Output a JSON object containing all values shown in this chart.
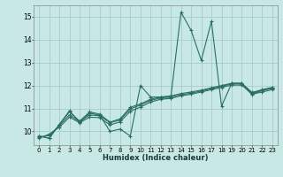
{
  "xlabel": "Humidex (Indice chaleur)",
  "bg_color": "#c8e8e5",
  "grid_color": "#a8ccca",
  "line_color": "#2a6e62",
  "xlim": [
    -0.5,
    23.5
  ],
  "ylim": [
    9.4,
    15.5
  ],
  "yticks": [
    10,
    11,
    12,
    13,
    14,
    15
  ],
  "xticks": [
    0,
    1,
    2,
    3,
    4,
    5,
    6,
    7,
    8,
    9,
    10,
    11,
    12,
    13,
    14,
    15,
    16,
    17,
    18,
    19,
    20,
    21,
    22,
    23
  ],
  "series0": [
    9.8,
    9.7,
    10.3,
    10.9,
    10.4,
    10.8,
    10.7,
    10.0,
    10.1,
    9.8,
    12.0,
    11.5,
    11.5,
    11.5,
    15.2,
    14.4,
    13.1,
    14.8,
    11.1,
    12.1,
    12.1,
    11.6,
    11.8,
    11.9
  ],
  "series1": [
    9.8,
    9.7,
    10.3,
    10.85,
    10.45,
    10.85,
    10.75,
    10.4,
    10.55,
    11.05,
    11.2,
    11.4,
    11.5,
    11.55,
    11.65,
    11.72,
    11.8,
    11.9,
    12.0,
    12.1,
    12.1,
    11.7,
    11.82,
    11.92
  ],
  "series2": [
    9.75,
    9.82,
    10.25,
    10.72,
    10.42,
    10.72,
    10.68,
    10.38,
    10.5,
    10.98,
    11.15,
    11.35,
    11.46,
    11.5,
    11.6,
    11.67,
    11.76,
    11.87,
    11.97,
    12.07,
    12.07,
    11.67,
    11.78,
    11.88
  ],
  "series3": [
    9.7,
    9.88,
    10.18,
    10.62,
    10.38,
    10.62,
    10.6,
    10.28,
    10.42,
    10.88,
    11.06,
    11.28,
    11.4,
    11.44,
    11.55,
    11.62,
    11.72,
    11.82,
    11.92,
    12.02,
    12.02,
    11.62,
    11.72,
    11.82
  ]
}
